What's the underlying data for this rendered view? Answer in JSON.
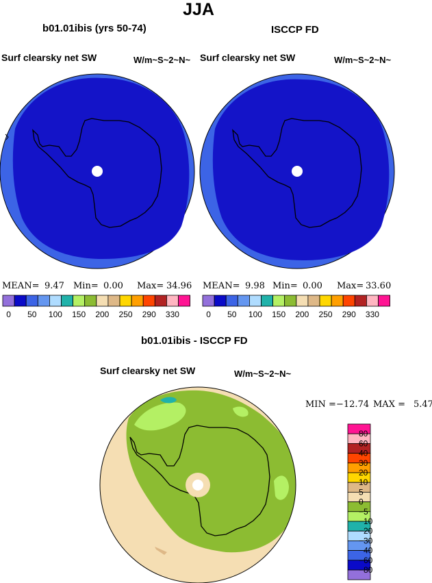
{
  "figure": {
    "title": "JJA",
    "colors": {
      "ocean_deep": "#1414c8",
      "ocean_rim": "#3c64e6",
      "pole_hole": "#ffffff",
      "diff_green": "#8cbc32",
      "diff_light_green": "#b4f064",
      "diff_tan": "#f5deb3",
      "diff_tan_dark": "#deb887",
      "diff_teal": "#20b2aa"
    }
  },
  "panels": {
    "model": {
      "title": "b01.01ibis (yrs 50-74)",
      "variable": "Surf clearsky net SW",
      "units": "W/m~S~2~N~",
      "stats": {
        "mean_label": "MEAN=",
        "mean": "9.47",
        "min_label": "Min=",
        "min": "0.00",
        "max_label": "Max=",
        "max": "34.96"
      }
    },
    "obs": {
      "title": "ISCCP FD",
      "variable": "Surf clearsky net SW",
      "units": "W/m~S~2~N~",
      "stats": {
        "mean_label": "MEAN=",
        "mean": "9.98",
        "min_label": "Min=",
        "min": "0.00",
        "max_label": "Max=",
        "max": "33.60"
      }
    },
    "diff": {
      "title": "b01.01ibis - ISCCP FD",
      "variable": "Surf clearsky net SW",
      "units": "W/m~S~2~N~",
      "stats": {
        "min_label": "MIN =",
        "min": "−12.74",
        "max_label": "MAX =",
        "max": "5.47"
      }
    }
  },
  "chart_data": [
    {
      "type": "heatmap",
      "projection": "south-polar-stereographic",
      "title": "b01.01ibis (yrs 50-74)",
      "variable": "Surf clearsky net SW",
      "units": "W/m~S~2~N~",
      "mean": 9.47,
      "min": 0.0,
      "max": 34.96,
      "colorbar": {
        "labels": [
          "0",
          "50",
          "100",
          "150",
          "200",
          "250",
          "290",
          "330"
        ],
        "colors": [
          "#9370db",
          "#0a0ac8",
          "#3c64e6",
          "#6496f0",
          "#afdcff",
          "#20b2aa",
          "#b4f064",
          "#8cbc32",
          "#f5deb3",
          "#deb887",
          "#ffd700",
          "#ff9f00",
          "#ff4500",
          "#b22222",
          "#ffb6c1",
          "#ff1493"
        ]
      }
    },
    {
      "type": "heatmap",
      "projection": "south-polar-stereographic",
      "title": "ISCCP FD",
      "variable": "Surf clearsky net SW",
      "units": "W/m~S~2~N~",
      "mean": 9.98,
      "min": 0.0,
      "max": 33.6,
      "colorbar": {
        "labels": [
          "0",
          "50",
          "100",
          "150",
          "200",
          "250",
          "290",
          "330"
        ],
        "colors": [
          "#9370db",
          "#0a0ac8",
          "#3c64e6",
          "#6496f0",
          "#afdcff",
          "#20b2aa",
          "#b4f064",
          "#8cbc32",
          "#f5deb3",
          "#deb887",
          "#ffd700",
          "#ff9f00",
          "#ff4500",
          "#b22222",
          "#ffb6c1",
          "#ff1493"
        ]
      }
    },
    {
      "type": "heatmap",
      "projection": "south-polar-stereographic",
      "title": "b01.01ibis - ISCCP FD",
      "variable": "Surf clearsky net SW",
      "units": "W/m~S~2~N~",
      "min": -12.74,
      "max": 5.47,
      "colorbar": {
        "orientation": "vertical",
        "labels": [
          "80",
          "60",
          "40",
          "30",
          "20",
          "10",
          "5",
          "0",
          "−5",
          "−10",
          "−20",
          "−30",
          "−40",
          "−60",
          "−80"
        ],
        "colors": [
          "#ff1493",
          "#ffb6c1",
          "#b22222",
          "#ff4500",
          "#ff9f00",
          "#ffd700",
          "#deb887",
          "#f5deb3",
          "#8cbc32",
          "#b4f064",
          "#20b2aa",
          "#afdcff",
          "#6496f0",
          "#3c64e6",
          "#0a0ac8",
          "#9370db"
        ]
      }
    }
  ]
}
